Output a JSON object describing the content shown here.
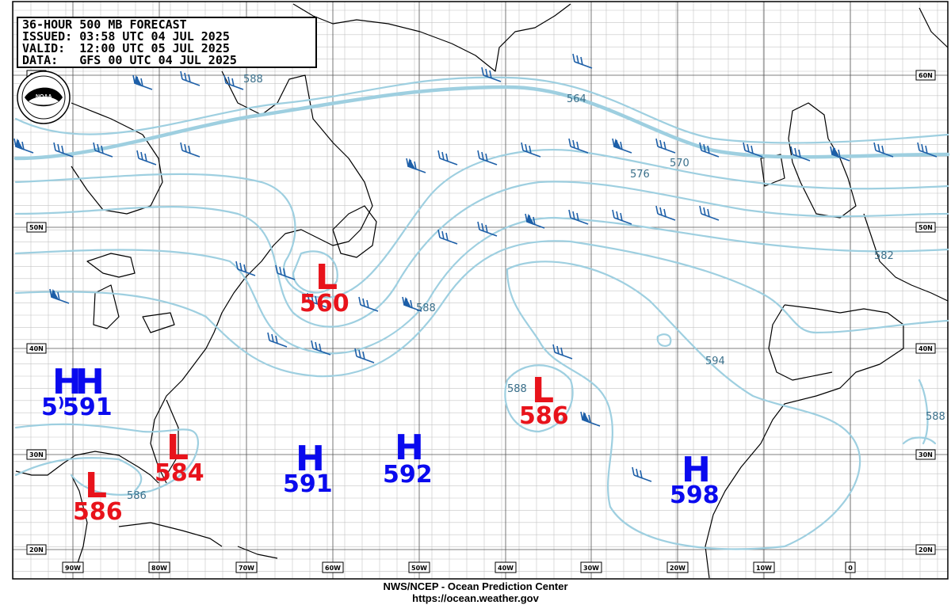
{
  "header": {
    "title": "36-HOUR 500 MB FORECAST",
    "issued": "ISSUED: 03:58 UTC 04 JUL 2025",
    "valid": "VALID:  12:00 UTC 05 JUL 2025",
    "data": "DATA:   GFS 00 UTC 04 JUL 2025"
  },
  "logo": {
    "text": "NOAA",
    "name": "noaa-logo"
  },
  "footer": {
    "agency": "NWS/NCEP - Ocean Prediction Center",
    "url": "https://ocean.weather.gov"
  },
  "colors": {
    "contour": "#9ecfe0",
    "coast": "#000000",
    "grid": "#bbbbbb",
    "wind": "#1d5fa8",
    "low": "#e8131b",
    "high": "#0a0aee"
  },
  "lat_labels": [
    "60N",
    "50N",
    "40N",
    "30N",
    "20N"
  ],
  "lon_labels": [
    "90W",
    "80W",
    "70W",
    "60W",
    "50W",
    "40W",
    "30W",
    "20W",
    "10W",
    "0"
  ],
  "contour_labels": [
    "588",
    "564",
    "570",
    "576",
    "582",
    "588",
    "594",
    "588",
    "588",
    "586"
  ],
  "systems": [
    {
      "type": "L",
      "value": "560"
    },
    {
      "type": "L",
      "value": "586"
    },
    {
      "type": "L",
      "value": "584"
    },
    {
      "type": "L",
      "value": "586"
    },
    {
      "type": "H",
      "value": "591"
    },
    {
      "type": "H",
      "value": "591"
    },
    {
      "type": "H",
      "value": "592"
    },
    {
      "type": "H",
      "value": "598"
    }
  ],
  "partial_value": "5⁾"
}
